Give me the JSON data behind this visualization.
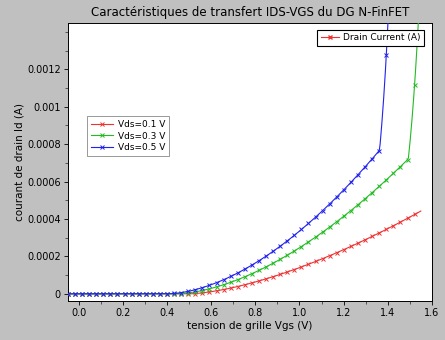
{
  "title": "Caractéristiques de transfert IDS-VGS du DG N-FinFET",
  "xlabel": "tension de grille Vgs (V)",
  "ylabel": "courant de drain Id (A)",
  "xlim": [
    -0.05,
    1.6
  ],
  "ylim": [
    -4e-05,
    0.00145
  ],
  "yticks": [
    0,
    0.0002,
    0.0004,
    0.0006,
    0.0008,
    0.001,
    0.0012
  ],
  "ytick_labels": [
    "0",
    "0.0002",
    "0.0004",
    "0.0006",
    "0.0008",
    "0.001",
    "0.0012"
  ],
  "xticks": [
    0,
    0.2,
    0.4,
    0.6,
    0.8,
    1.0,
    1.2,
    1.4,
    1.6
  ],
  "legend_label": "Drain Current (A)",
  "vds_labels": [
    "Vds=0.1 V",
    "Vds=0.3 V",
    "Vds=0.5 V"
  ],
  "colors": [
    "#ee3333",
    "#22bb22",
    "#2222ee"
  ],
  "bg_color": "#c0c0c0",
  "plot_bg": "#ffffff",
  "title_fontsize": 8.5,
  "axis_fontsize": 7.5,
  "tick_fontsize": 7,
  "legend_fontsize": 6.5
}
